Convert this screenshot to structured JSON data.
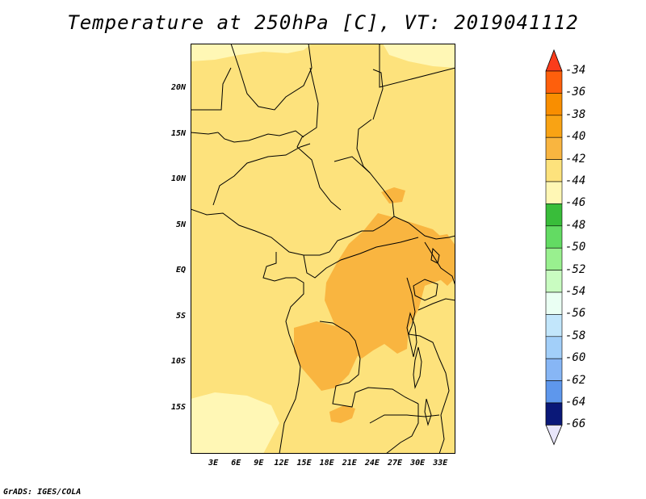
{
  "title": "Temperature at 250hPa [C], VT: 2019041112",
  "credit": "GrADS: IGES/COLA",
  "map": {
    "lon_range": [
      0,
      35
    ],
    "lat_range": [
      -20,
      25
    ],
    "lat_labels": [
      {
        "text": "20N",
        "lat": 20
      },
      {
        "text": "15N",
        "lat": 15
      },
      {
        "text": "10N",
        "lat": 10
      },
      {
        "text": "5N",
        "lat": 5
      },
      {
        "text": "EQ",
        "lat": 0
      },
      {
        "text": "5S",
        "lat": -5
      },
      {
        "text": "10S",
        "lat": -10
      },
      {
        "text": "15S",
        "lat": -15
      }
    ],
    "lon_labels": [
      {
        "text": "3E",
        "lon": 3
      },
      {
        "text": "6E",
        "lon": 6
      },
      {
        "text": "9E",
        "lon": 9
      },
      {
        "text": "12E",
        "lon": 12
      },
      {
        "text": "15E",
        "lon": 15
      },
      {
        "text": "18E",
        "lon": 18
      },
      {
        "text": "21E",
        "lon": 21
      },
      {
        "text": "24E",
        "lon": 24
      },
      {
        "text": "27E",
        "lon": 27
      },
      {
        "text": "30E",
        "lon": 30
      },
      {
        "text": "33E",
        "lon": 33
      }
    ]
  },
  "colorbar": {
    "labels": [
      "-34",
      "-36",
      "-38",
      "-40",
      "-42",
      "-44",
      "-46",
      "-48",
      "-50",
      "-52",
      "-54",
      "-56",
      "-58",
      "-60",
      "-62",
      "-64",
      "-66"
    ],
    "colors": [
      "#fe5f0c",
      "#f98e00",
      "#f9a314",
      "#f9b540",
      "#fde27c",
      "#fff7b5",
      "#39bd3a",
      "#63db63",
      "#99f08f",
      "#c9fcc1",
      "#eafff3",
      "#c2e6fb",
      "#a2cff9",
      "#87b6f5",
      "#5e97ec",
      "#2e6bd9",
      "#1a46b0"
    ],
    "top_arrow_color": "#fb3c1b",
    "bottom_arrow_color": "#e8e6fa",
    "extra_color_top": "#0a1878"
  },
  "field_colors": {
    "base": "#fde27c",
    "warm": "#f9b540",
    "cool": "#fff7b5"
  }
}
